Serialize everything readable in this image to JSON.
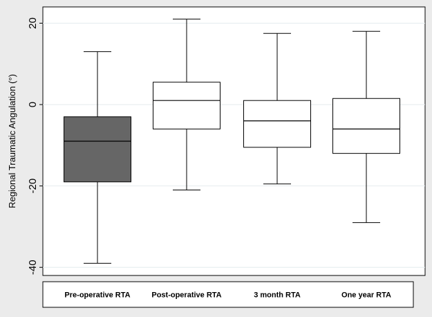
{
  "chart_data": {
    "type": "box",
    "ylabel": "Regional Traumatic Angulation (°)",
    "ylim": [
      -42,
      24
    ],
    "yticks": [
      -40,
      -20,
      0,
      20
    ],
    "grid": true,
    "categories": [
      "Pre-operative RTA",
      "Post-operative RTA",
      "3 month RTA",
      "One year RTA"
    ],
    "boxes": [
      {
        "category": "Pre-operative RTA",
        "whisker_low": -39,
        "q1": -19,
        "median": -9,
        "q3": -3,
        "whisker_high": 13,
        "fill": "#666666"
      },
      {
        "category": "Post-operative RTA",
        "whisker_low": -21,
        "q1": -6,
        "median": 1,
        "q3": 5.5,
        "whisker_high": 21,
        "fill": "#ffffff"
      },
      {
        "category": "3 month RTA",
        "whisker_low": -19.5,
        "q1": -10.5,
        "median": -4,
        "q3": 1,
        "whisker_high": 17.5,
        "fill": "#ffffff"
      },
      {
        "category": "One year RTA",
        "whisker_low": -29,
        "q1": -12,
        "median": -6,
        "q3": 1.5,
        "whisker_high": 18,
        "fill": "#ffffff"
      }
    ]
  },
  "colors": {
    "background": "#ebebeb",
    "plot_background": "#ffffff",
    "grid": "#e4ebee",
    "box_stroke": "#000000"
  }
}
